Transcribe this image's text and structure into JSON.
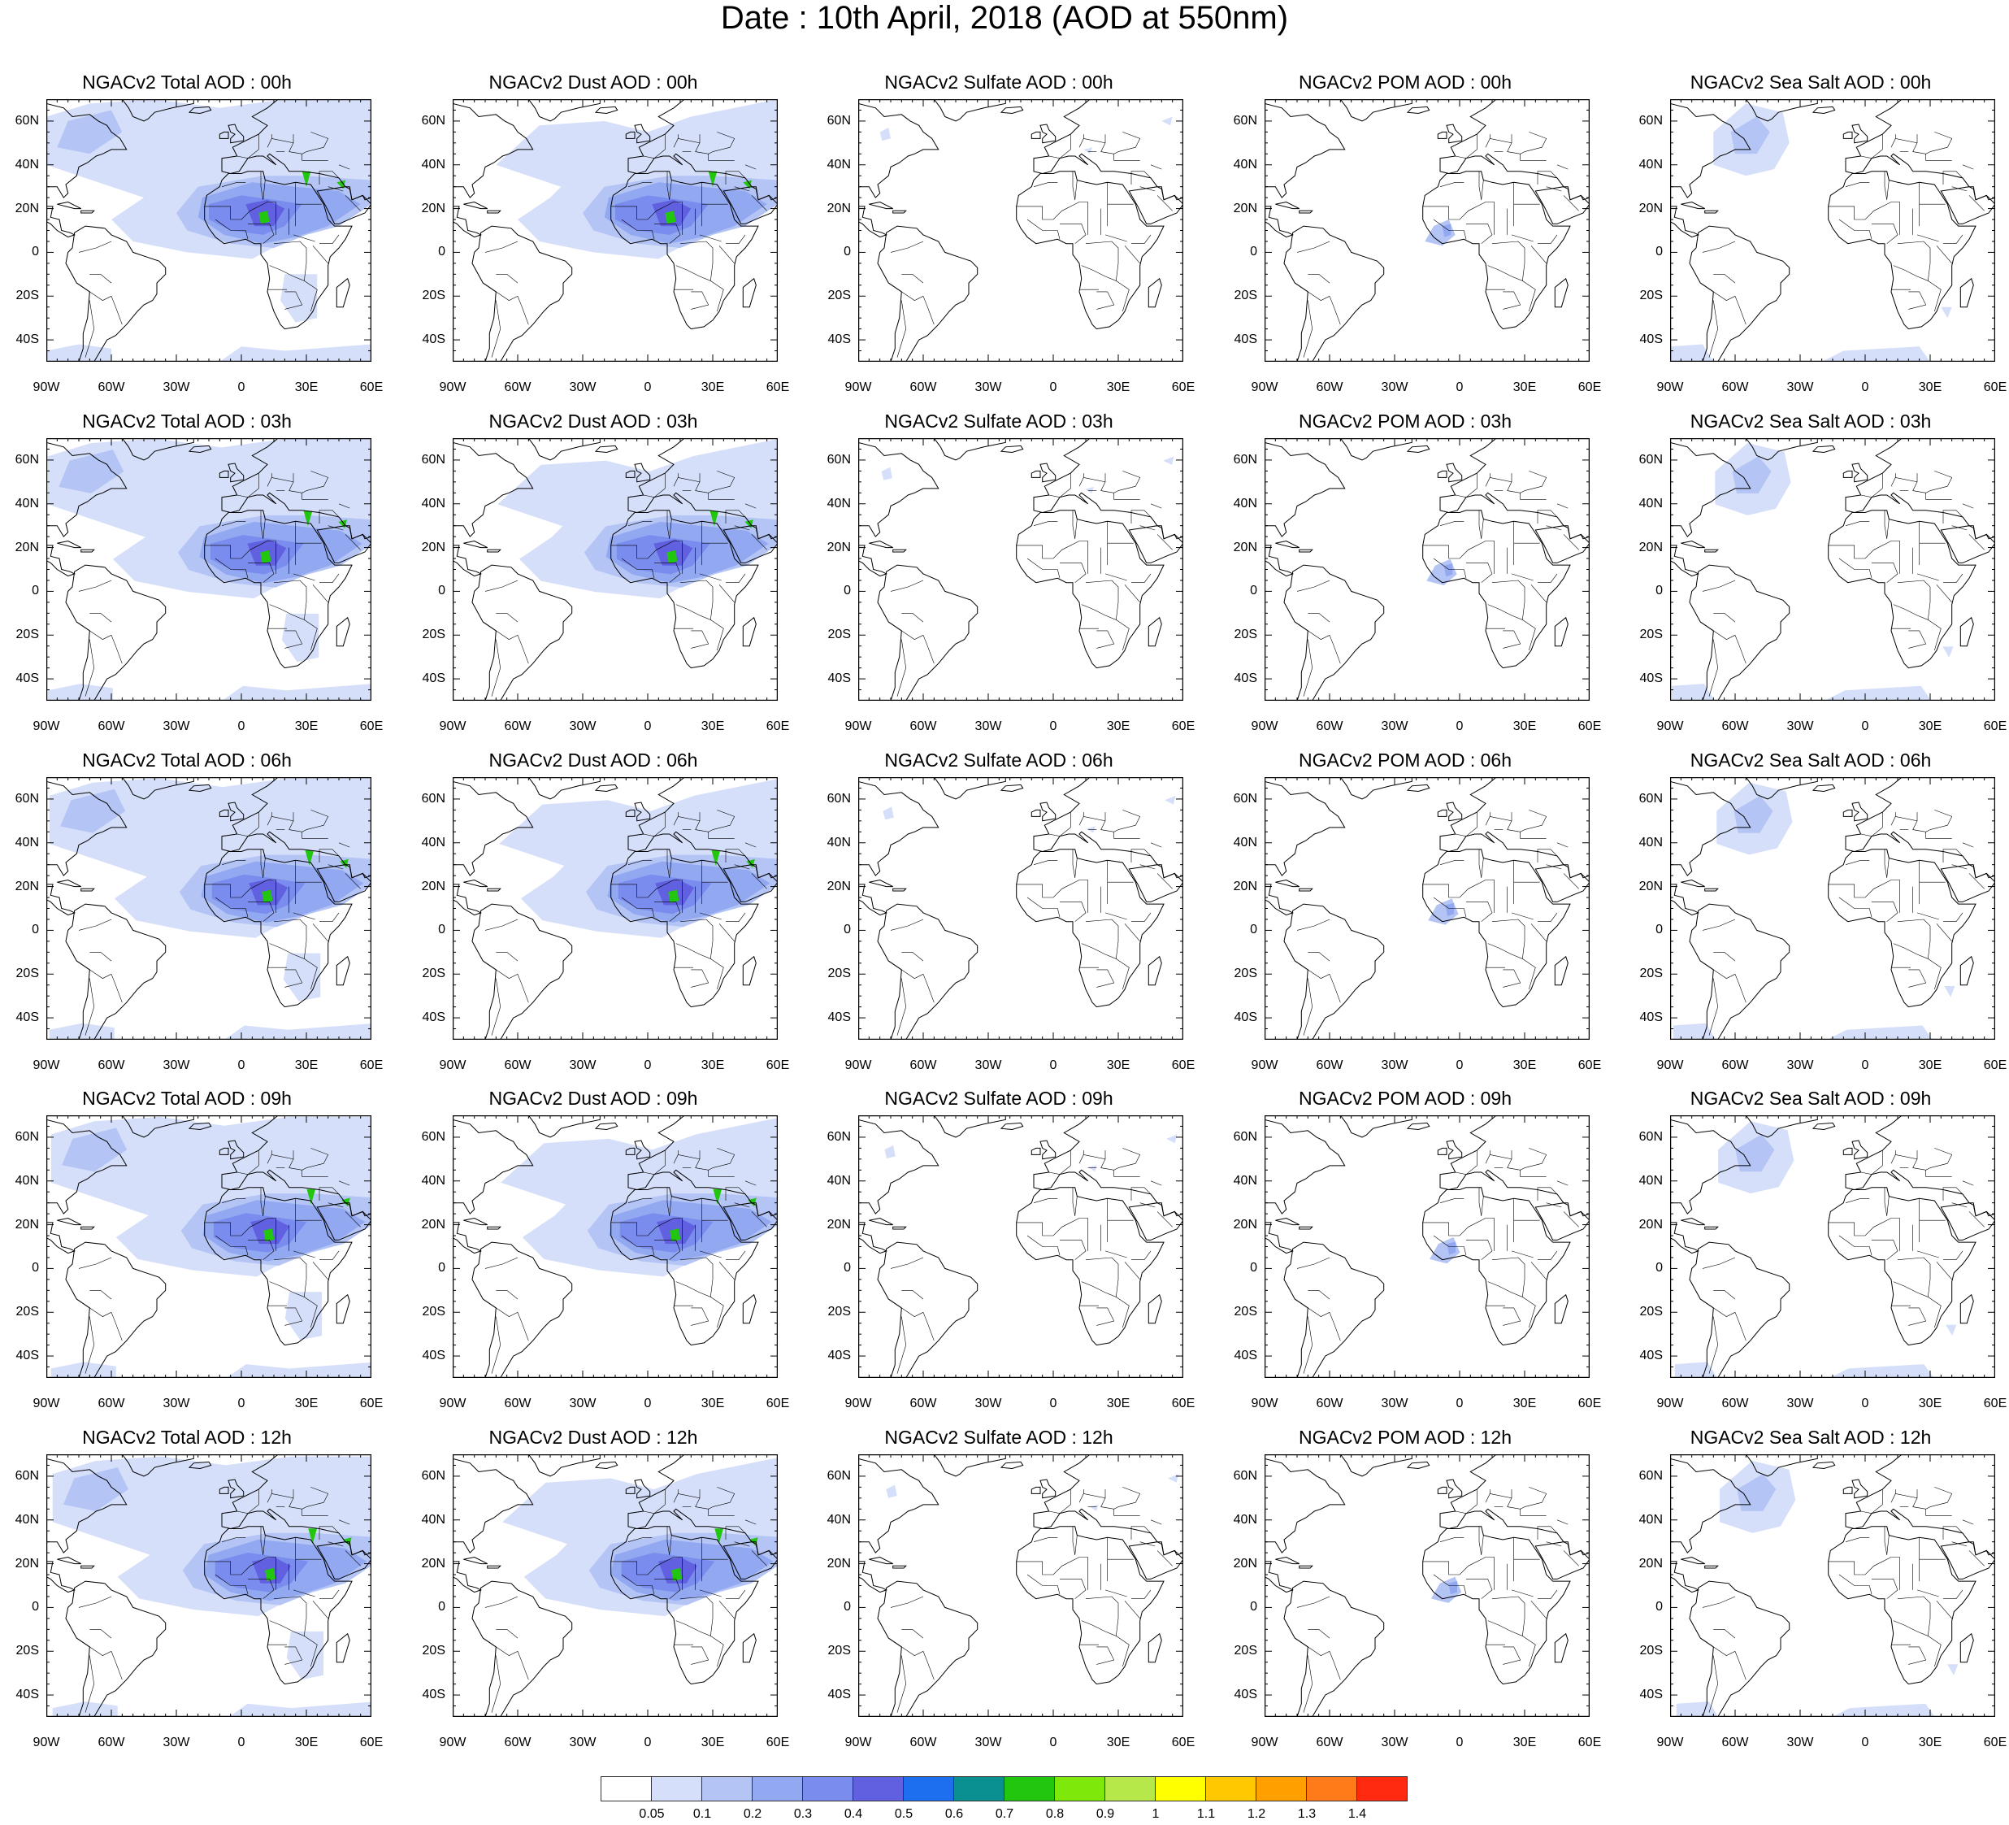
{
  "title": "Date : 10th April, 2018 (AOD at 550nm)",
  "species": [
    "Total",
    "Dust",
    "Sulfate",
    "POM",
    "Sea Salt"
  ],
  "hours": [
    "00h",
    "03h",
    "06h",
    "09h",
    "12h"
  ],
  "panel_titles": [
    [
      "NGACv2 Total AOD : 00h",
      "NGACv2 Dust AOD : 00h",
      "NGACv2 Sulfate AOD : 00h",
      "NGACv2 POM AOD : 00h",
      "NGACv2 Sea Salt AOD : 00h"
    ],
    [
      "NGACv2 Total AOD : 03h",
      "NGACv2 Dust AOD : 03h",
      "NGACv2 Sulfate AOD : 03h",
      "NGACv2 POM AOD : 03h",
      "NGACv2 Sea Salt AOD : 03h"
    ],
    [
      "NGACv2 Total AOD : 06h",
      "NGACv2 Dust AOD : 06h",
      "NGACv2 Sulfate AOD : 06h",
      "NGACv2 POM AOD : 06h",
      "NGACv2 Sea Salt AOD : 06h"
    ],
    [
      "NGACv2 Total AOD : 09h",
      "NGACv2 Dust AOD : 09h",
      "NGACv2 Sulfate AOD : 09h",
      "NGACv2 POM AOD : 09h",
      "NGACv2 Sea Salt  AOD : 09h"
    ],
    [
      "NGACv2 Total AOD  : 12h",
      "NGACv2 Dust AOD : 12h",
      "NGACv2 Sulfate AOD : 12h",
      "NGACv2 POM  AOD : 12h",
      "NGACv2 Sea Salt  AOD : 12h"
    ]
  ],
  "map_extent": {
    "lon": [
      -90,
      60
    ],
    "lat": [
      -50,
      70
    ]
  },
  "x_ticks": [
    {
      "lon": -90,
      "label": "90W"
    },
    {
      "lon": -60,
      "label": "60W"
    },
    {
      "lon": -30,
      "label": "30W"
    },
    {
      "lon": 0,
      "label": "0"
    },
    {
      "lon": 30,
      "label": "30E"
    },
    {
      "lon": 60,
      "label": "60E"
    }
  ],
  "y_ticks": [
    {
      "lat": 60,
      "label": "60N"
    },
    {
      "lat": 40,
      "label": "40N"
    },
    {
      "lat": 20,
      "label": "20N"
    },
    {
      "lat": 0,
      "label": "0"
    },
    {
      "lat": -20,
      "label": "20S"
    },
    {
      "lat": -40,
      "label": "40S"
    }
  ],
  "colorbar": {
    "labels": [
      "0.05",
      "0.1",
      "0.2",
      "0.3",
      "0.4",
      "0.5",
      "0.6",
      "0.7",
      "0.8",
      "0.9",
      "1",
      "1.1",
      "1.2",
      "1.3",
      "1.4"
    ],
    "colors": [
      "#ffffff",
      "#d6dffa",
      "#b3c4f5",
      "#92a8f1",
      "#7a8cee",
      "#6060e0",
      "#1e6ef0",
      "#0a9090",
      "#22c60e",
      "#7ee80a",
      "#b6e84a",
      "#ffff00",
      "#ffc800",
      "#ffa000",
      "#ff7a18",
      "#ff2a10"
    ]
  },
  "coast_color": "#000000"
}
